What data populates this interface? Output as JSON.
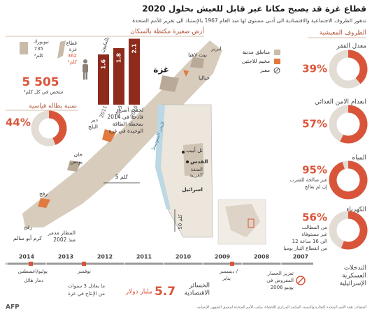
{
  "header": {
    "title": "قطاع غزة قد يصبح مكانا غير قابل للعيش بحلول 2020",
    "subtitle": "تدهور الظروف الاجتماعية والاقتصادية الى أدنى مستوى لها منذ العام 1967 بالإستناد الى تقرير للأمم المتحدة"
  },
  "population": {
    "heading": "أرض صغيرة مكتظة بالسكان",
    "new_york": {
      "name": "نيويورك",
      "area": "735",
      "unit": "كلم²"
    },
    "gaza": {
      "name": "قطاع",
      "name2": "غزة",
      "area": "362",
      "unit": "كلم²"
    },
    "density": {
      "value": "5 505",
      "label": "شخص في كل كلم²"
    },
    "growth": {
      "unit": "بالمليون",
      "years": [
        "2011",
        "2013",
        "2020"
      ],
      "values": [
        1.6,
        1.8,
        2.1
      ]
    }
  },
  "unemployment": {
    "title": "نسبة بطالة قياسية",
    "percent": {
      "value": 44,
      "label": "44%"
    }
  },
  "conditions": {
    "heading": "الظروف المعيشية",
    "items": [
      {
        "title": "معدل الفقر",
        "percent": {
          "value": 39,
          "label": "39%"
        },
        "notes": []
      },
      {
        "title": "انعدام الامن الغذائي",
        "percent": {
          "value": 57,
          "label": "57%"
        },
        "notes": []
      },
      {
        "title": "المياه",
        "percent": {
          "value": 95,
          "label": "95%"
        },
        "notes": [
          "غير صالحة للشرب",
          "إن لم تعالج"
        ]
      },
      {
        "title": "الكهرباء",
        "percent": {
          "value": 56,
          "label": "56%"
        },
        "notes": [
          "من المطالب",
          "غير مستوفاة",
          "12 الى 16 ساعة",
          "من انقطاع التيار يوميا"
        ]
      }
    ]
  },
  "map": {
    "legend": [
      "مناطق مدنية",
      "مخيم للاجئين",
      "معبر"
    ],
    "places": {
      "erez": "ايريز",
      "beit_lahia": "بيت لاهيا",
      "jabalia": "جباليا",
      "gaza": "غزة",
      "deir_balah": [
        "دير",
        "البلح"
      ],
      "khan_younis": [
        "خان",
        "يونس"
      ],
      "rafah": "رفح",
      "rafah_crossing": "رفح",
      "kerem_shalom": "كرم أبو سالم",
      "tel_aviv": "تل أبيب",
      "jerusalem": "القدس",
      "west_bank": [
        "الضفة",
        "الغربية"
      ],
      "israel": "اسرائيل",
      "sea": "البحر المتوسط"
    },
    "airport": [
      "المطار مدمر",
      "منذ 2002"
    ],
    "power_plant": [
      "لحقت أضرار",
      "فادحة في 2014",
      "بمحطة الطاقة",
      "الوحيدة في غزة"
    ],
    "scale_small": "5 كلم",
    "scale_large": "50 كلم"
  },
  "timeline": {
    "heading": [
      "التدخلات",
      "العسكرية",
      "الإسرائيلية"
    ],
    "years": [
      "2014",
      "2013",
      "2012",
      "2011",
      "2010",
      "2009",
      "2008",
      "2007"
    ],
    "events": {
      "2014": [
        "يوليو/اغسطس",
        "دمار هائل"
      ],
      "2012": [
        "نوفمبر"
      ],
      "2008": [
        "ديسمبر /",
        "يناير"
      ],
      "blockade": [
        "تعزيز الحصار",
        "المفروض في",
        "يونيو 2006"
      ]
    }
  },
  "losses": {
    "title": [
      "الخسائر",
      "الاقتصادية"
    ],
    "value": "5.7",
    "unit": "مليار دولار",
    "equivalent": [
      "ما يعادل 3 سنوات",
      "من الإنتاج في غزة"
    ]
  },
  "footer": {
    "source": "المصادر: هيئة الأمم المتحدة للتجارة والتنمية، المكتب المركزي للإحصاء، مكتب الأمم المتحدة لتنسيق الشؤون الإنسانية",
    "credit": "AFP"
  }
}
